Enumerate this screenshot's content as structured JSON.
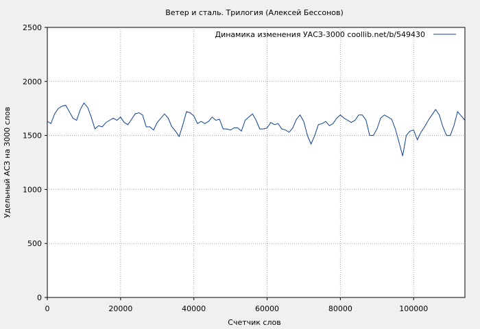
{
  "chart_data": {
    "type": "line",
    "title": "Ветер и сталь. Трилогия (Алексей Бессонов)",
    "xlabel": "Счетчик слов",
    "ylabel": "Удельный АСЗ на 3000 слов",
    "xlim": [
      0,
      114000
    ],
    "ylim": [
      0,
      2500
    ],
    "xticks": [
      0,
      20000,
      40000,
      60000,
      80000,
      100000
    ],
    "yticks": [
      0,
      500,
      1000,
      1500,
      2000,
      2500
    ],
    "grid": true,
    "legend_position": "top-right",
    "series": [
      {
        "name": "Динамика изменения УАСЗ-3000  coollib.net/b/549430",
        "color": "#0b3d91",
        "x": [
          0,
          1000,
          2000,
          3000,
          4000,
          5000,
          6000,
          7000,
          8000,
          9000,
          10000,
          11000,
          12000,
          13000,
          14000,
          15000,
          16000,
          17000,
          18000,
          19000,
          20000,
          21000,
          22000,
          23000,
          24000,
          25000,
          26000,
          27000,
          28000,
          29000,
          30000,
          31000,
          32000,
          33000,
          34000,
          35000,
          36000,
          37000,
          38000,
          39000,
          40000,
          41000,
          42000,
          43000,
          44000,
          45000,
          46000,
          47000,
          48000,
          49000,
          50000,
          51000,
          52000,
          53000,
          54000,
          55000,
          56000,
          57000,
          58000,
          59000,
          60000,
          61000,
          62000,
          63000,
          64000,
          65000,
          66000,
          67000,
          68000,
          69000,
          70000,
          71000,
          72000,
          73000,
          74000,
          75000,
          76000,
          77000,
          78000,
          79000,
          80000,
          81000,
          82000,
          83000,
          84000,
          85000,
          86000,
          87000,
          88000,
          89000,
          90000,
          91000,
          92000,
          93000,
          94000,
          95000,
          96000,
          97000,
          98000,
          99000,
          100000,
          101000,
          102000,
          103000,
          104000,
          105000,
          106000,
          107000,
          108000,
          109000,
          110000,
          111000,
          112000,
          113000,
          114000
        ],
        "y": [
          1630,
          1610,
          1700,
          1750,
          1770,
          1780,
          1720,
          1660,
          1640,
          1740,
          1800,
          1760,
          1670,
          1560,
          1590,
          1580,
          1620,
          1640,
          1660,
          1640,
          1670,
          1620,
          1600,
          1650,
          1700,
          1710,
          1690,
          1580,
          1580,
          1550,
          1620,
          1660,
          1700,
          1660,
          1580,
          1540,
          1490,
          1600,
          1720,
          1710,
          1680,
          1610,
          1630,
          1610,
          1630,
          1670,
          1640,
          1650,
          1560,
          1560,
          1550,
          1570,
          1570,
          1540,
          1640,
          1670,
          1700,
          1640,
          1560,
          1560,
          1570,
          1620,
          1600,
          1610,
          1560,
          1550,
          1530,
          1570,
          1650,
          1690,
          1630,
          1500,
          1420,
          1500,
          1600,
          1610,
          1630,
          1590,
          1610,
          1660,
          1690,
          1660,
          1640,
          1620,
          1640,
          1690,
          1690,
          1640,
          1500,
          1500,
          1560,
          1660,
          1690,
          1670,
          1650,
          1560,
          1440,
          1310,
          1500,
          1540,
          1550,
          1460,
          1530,
          1580,
          1640,
          1690,
          1740,
          1690,
          1580,
          1500,
          1500,
          1590,
          1720,
          1680,
          1640
        ]
      }
    ]
  }
}
